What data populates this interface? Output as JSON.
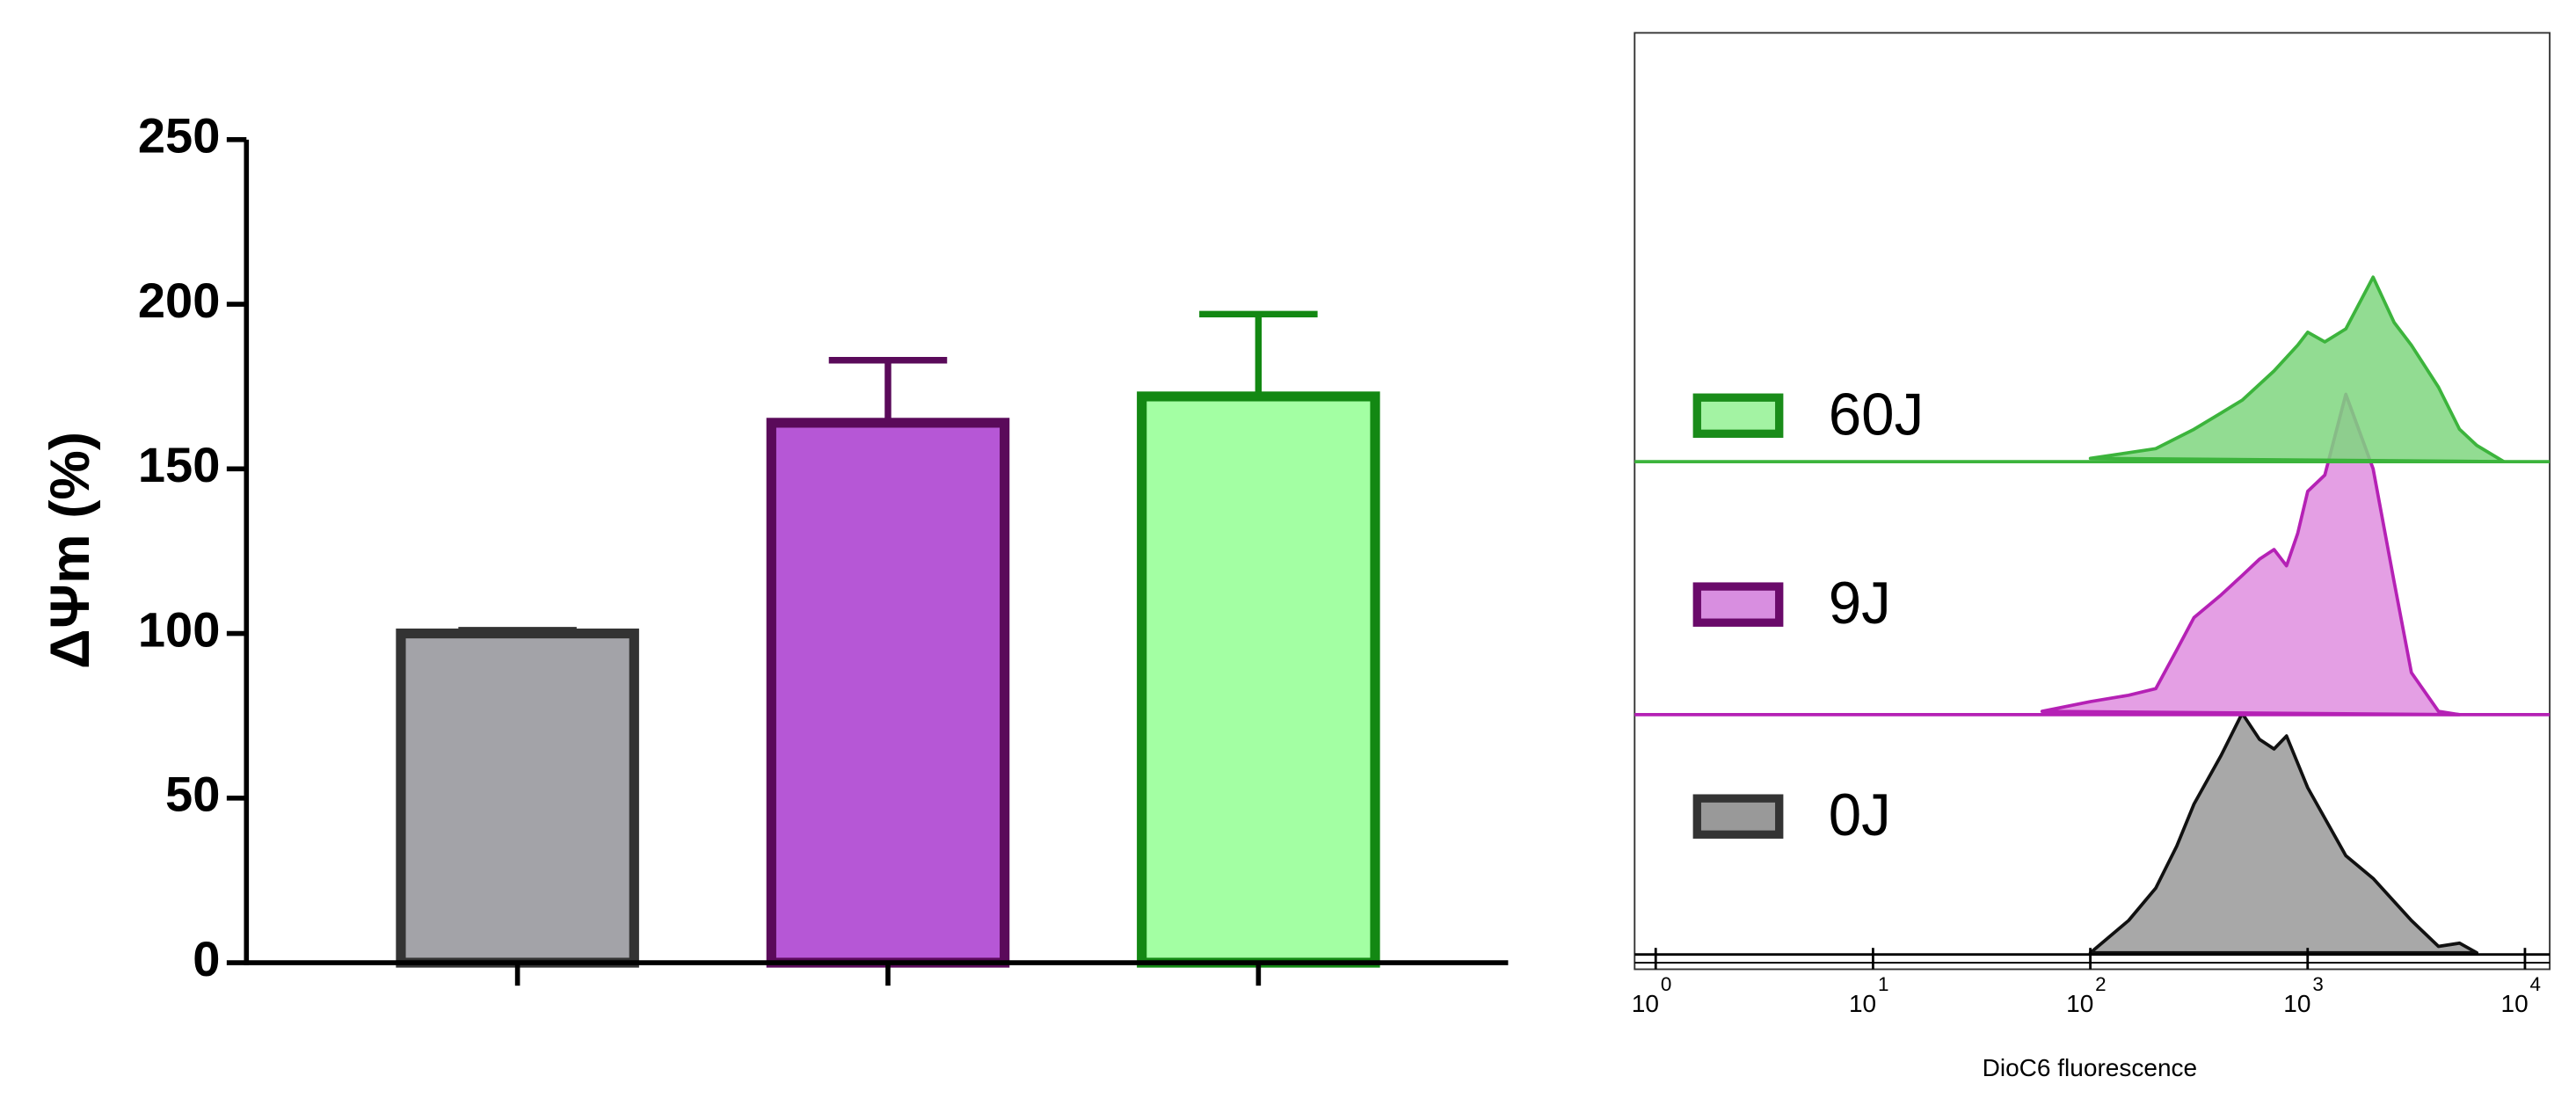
{
  "chart_data": [
    {
      "type": "bar",
      "y_label": "ΔΨm (%)",
      "categories": [
        null,
        null,
        null
      ],
      "values": [
        100,
        164,
        172
      ],
      "errors": [
        1,
        19,
        25
      ],
      "colors": [
        "#a3a3a8",
        "#b657d6",
        "#a3ffa3"
      ],
      "edge_colors": [
        "#333333",
        "#5a0a5a",
        "#138813"
      ],
      "ylim": [
        0,
        250
      ],
      "yticks": [
        0,
        50,
        100,
        150,
        200,
        250
      ]
    },
    {
      "type": "histogram-overlay",
      "x_label": "DioC6 fluorescence",
      "log_x": true,
      "xlim": [
        0.8,
        13000
      ],
      "xticks": [
        {
          "value": 1,
          "label": "10",
          "exponent": "0"
        },
        {
          "value": 10,
          "label": "10",
          "exponent": "1"
        },
        {
          "value": 100,
          "label": "10",
          "exponent": "2"
        },
        {
          "value": 1000,
          "label": "10",
          "exponent": "3"
        },
        {
          "value": 10000,
          "label": "10",
          "exponent": "4"
        }
      ],
      "series": [
        {
          "name": "60J",
          "color": "#3cb43c",
          "fill": "#7fd67f",
          "legend_edge": "#1a8c1a",
          "legend_fill": "#a3f3a3",
          "x": [
            100,
            200,
            300,
            400,
            500,
            700,
            900,
            1000,
            1200,
            1500,
            2000,
            2500,
            3000,
            4000,
            5000,
            6000,
            8000
          ],
          "values": [
            1,
            4,
            10,
            15,
            19,
            28,
            36,
            40,
            37,
            41,
            57,
            43,
            36,
            23,
            10,
            5,
            0
          ]
        },
        {
          "name": "9J",
          "color": "#b521b5",
          "fill": "#df8edf",
          "legend_edge": "#6a0a6a",
          "legend_fill": "#d88ee0",
          "x": [
            60,
            100,
            150,
            200,
            250,
            300,
            400,
            500,
            600,
            700,
            800,
            900,
            1000,
            1200,
            1500,
            2000,
            2500,
            3000,
            4000,
            5000
          ],
          "values": [
            1,
            4,
            6,
            8,
            20,
            30,
            37,
            43,
            48,
            51,
            46,
            56,
            69,
            74,
            99,
            76,
            41,
            13,
            1,
            0
          ]
        },
        {
          "name": "0J",
          "color": "#111111",
          "fill": "#999999",
          "legend_edge": "#333333",
          "legend_fill": "#999999",
          "x": [
            100,
            150,
            200,
            250,
            300,
            400,
            500,
            600,
            700,
            800,
            1000,
            1500,
            2000,
            3000,
            4000,
            5000,
            6000
          ],
          "values": [
            0,
            10,
            20,
            33,
            46,
            61,
            74,
            66,
            63,
            67,
            51,
            30,
            23,
            10,
            2,
            3,
            0
          ]
        }
      ]
    }
  ]
}
